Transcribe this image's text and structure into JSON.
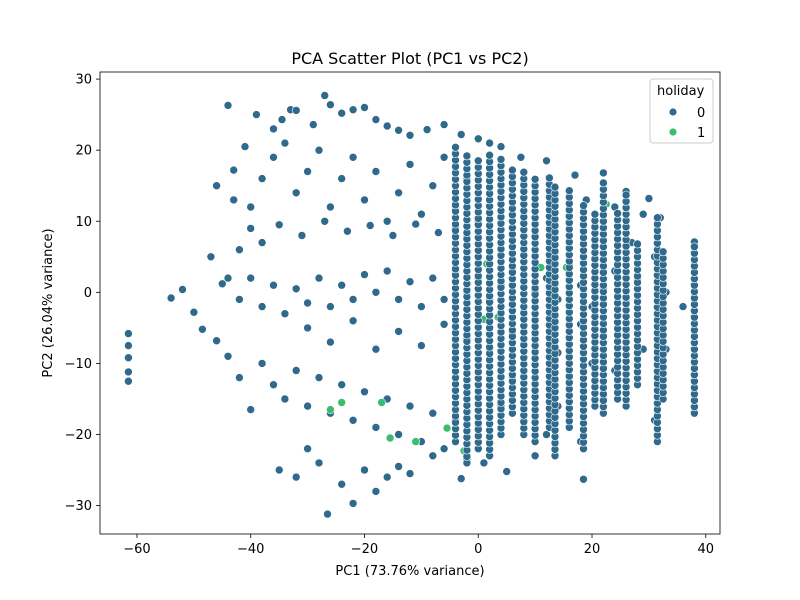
{
  "chart_data": {
    "type": "scatter",
    "title": "PCA Scatter Plot (PC1 vs PC2)",
    "xlabel": "PC1 (73.76% variance)",
    "ylabel": "PC2 (26.04% variance)",
    "xlim": [
      -66.5,
      42.5
    ],
    "ylim": [
      -34,
      31
    ],
    "xticks": [
      -60,
      -40,
      -20,
      0,
      20,
      40
    ],
    "xtick_labels": [
      "−60",
      "−40",
      "−20",
      "0",
      "20",
      "40"
    ],
    "yticks": [
      -30,
      -20,
      -10,
      0,
      10,
      20,
      30
    ],
    "ytick_labels": [
      "−30",
      "−20",
      "−10",
      "0",
      "10",
      "20",
      "30"
    ],
    "grid": false,
    "legend": {
      "title": "holiday",
      "placement": "top-right",
      "entries": [
        "0",
        "1"
      ]
    },
    "colors": {
      "0": "#2f6a8d",
      "1": "#3bbd6f"
    },
    "series": [
      {
        "name": "0",
        "color": "#2f6a8d",
        "points": [
          [
            -61.5,
            -5.8
          ],
          [
            -61.5,
            -7.5
          ],
          [
            -61.5,
            -9.2
          ],
          [
            -61.5,
            -11.2
          ],
          [
            -61.5,
            -12.5
          ],
          [
            -54,
            -0.8
          ],
          [
            -52,
            0.4
          ],
          [
            -50,
            -2.8
          ],
          [
            -48.5,
            -5.2
          ],
          [
            -47,
            5
          ],
          [
            -46,
            -6.8
          ],
          [
            -45,
            1.2
          ],
          [
            -44,
            26.3
          ],
          [
            -43,
            17.2
          ],
          [
            -41,
            20.5
          ],
          [
            -39,
            25
          ],
          [
            -36,
            23
          ],
          [
            -34.5,
            24.3
          ],
          [
            -33,
            25.7
          ],
          [
            -32,
            25.6
          ],
          [
            -29,
            23.6
          ],
          [
            -27,
            27.7
          ],
          [
            -26,
            26.4
          ],
          [
            -24,
            25.2
          ],
          [
            -22,
            25.7
          ],
          [
            -20,
            26
          ],
          [
            -18,
            24.3
          ],
          [
            -16,
            23.4
          ],
          [
            -14,
            22.8
          ],
          [
            -12,
            22.1
          ],
          [
            -9,
            22.9
          ],
          [
            -6,
            23.6
          ],
          [
            -3,
            22.2
          ],
          [
            0,
            21.6
          ],
          [
            2,
            21
          ],
          [
            4,
            20.5
          ],
          [
            7.5,
            19
          ],
          [
            12,
            18.5
          ],
          [
            17,
            16.5
          ],
          [
            22,
            16.8
          ],
          [
            26,
            14.2
          ],
          [
            30,
            13.2
          ],
          [
            32,
            10.5
          ],
          [
            38,
            7.1
          ],
          [
            38,
            -16.8
          ],
          [
            -46,
            15
          ],
          [
            -43,
            13
          ],
          [
            -40,
            12
          ],
          [
            -38,
            16
          ],
          [
            -36,
            19
          ],
          [
            -34,
            21
          ],
          [
            -32,
            14
          ],
          [
            -30,
            17
          ],
          [
            -28,
            20
          ],
          [
            -26,
            12
          ],
          [
            -24,
            16
          ],
          [
            -22,
            19
          ],
          [
            -20,
            13
          ],
          [
            -18,
            17
          ],
          [
            -16,
            10
          ],
          [
            -14,
            14
          ],
          [
            -12,
            18
          ],
          [
            -10,
            11
          ],
          [
            -8,
            15
          ],
          [
            -6,
            19
          ],
          [
            -4,
            12
          ],
          [
            -2,
            16
          ],
          [
            0,
            10
          ],
          [
            2,
            14
          ],
          [
            4,
            17
          ],
          [
            6,
            11
          ],
          [
            8,
            15
          ],
          [
            10,
            8
          ],
          [
            13,
            12
          ],
          [
            16,
            10
          ],
          [
            19,
            13
          ],
          [
            22,
            9
          ],
          [
            24,
            12
          ],
          [
            27,
            7
          ],
          [
            29,
            11
          ],
          [
            -42,
            6
          ],
          [
            -40,
            9
          ],
          [
            -38,
            7
          ],
          [
            -35,
            9.5
          ],
          [
            -31,
            8
          ],
          [
            -27,
            10
          ],
          [
            -23,
            8.6
          ],
          [
            -19,
            9.4
          ],
          [
            -15,
            8
          ],
          [
            -11,
            9.6
          ],
          [
            -7,
            8.4
          ],
          [
            -4,
            9.1
          ],
          [
            -44,
            2
          ],
          [
            -42,
            -1
          ],
          [
            -40,
            2
          ],
          [
            -38,
            -2
          ],
          [
            -36,
            1
          ],
          [
            -34,
            -3
          ],
          [
            -32,
            0.5
          ],
          [
            -30,
            -1.5
          ],
          [
            -28,
            2
          ],
          [
            -26,
            -2
          ],
          [
            -24,
            1
          ],
          [
            -22,
            -1
          ],
          [
            -20,
            2.5
          ],
          [
            -18,
            0
          ],
          [
            -16,
            3
          ],
          [
            -14,
            -1
          ],
          [
            -12,
            1.5
          ],
          [
            -10,
            -2
          ],
          [
            -8,
            2
          ],
          [
            -6,
            -1
          ],
          [
            -4,
            3
          ],
          [
            -2,
            0
          ],
          [
            0,
            2
          ],
          [
            2,
            -1
          ],
          [
            4,
            1
          ],
          [
            6,
            3
          ],
          [
            8,
            -1
          ],
          [
            10,
            0
          ],
          [
            12,
            2
          ],
          [
            14,
            -1
          ],
          [
            16,
            4
          ],
          [
            18,
            1
          ],
          [
            20,
            -2
          ],
          [
            22,
            0.5
          ],
          [
            24,
            3
          ],
          [
            26,
            -1
          ],
          [
            28,
            2
          ],
          [
            31,
            5
          ],
          [
            33,
            0
          ],
          [
            -44,
            -9
          ],
          [
            -42,
            -12
          ],
          [
            -40,
            -16.5
          ],
          [
            -38,
            -10
          ],
          [
            -36,
            -13
          ],
          [
            -34,
            -15
          ],
          [
            -32,
            -11
          ],
          [
            -30,
            -16
          ],
          [
            -28,
            -12
          ],
          [
            -26,
            -17
          ],
          [
            -24,
            -13
          ],
          [
            -22,
            -18
          ],
          [
            -20,
            -14
          ],
          [
            -18,
            -19
          ],
          [
            -16,
            -15
          ],
          [
            -14,
            -20
          ],
          [
            -12,
            -16
          ],
          [
            -10,
            -21
          ],
          [
            -8,
            -17
          ],
          [
            -6,
            -22
          ],
          [
            -4,
            -18
          ],
          [
            -2,
            -23.5
          ],
          [
            0,
            -19
          ],
          [
            2,
            -21
          ],
          [
            4,
            -16
          ],
          [
            6,
            -12
          ],
          [
            8,
            -18
          ],
          [
            10,
            -14
          ],
          [
            12,
            -20
          ],
          [
            14,
            -16
          ],
          [
            16,
            -12
          ],
          [
            18,
            -21
          ],
          [
            20,
            -10
          ],
          [
            22,
            -15
          ],
          [
            24,
            -11
          ],
          [
            26,
            -16
          ],
          [
            28,
            -13
          ],
          [
            31,
            -18
          ],
          [
            33,
            -8
          ],
          [
            -35,
            -25
          ],
          [
            -32,
            -26
          ],
          [
            -30,
            -22
          ],
          [
            -28,
            -24
          ],
          [
            -26.5,
            -31.2
          ],
          [
            -24,
            -27
          ],
          [
            -22,
            -29.7
          ],
          [
            -20,
            -25
          ],
          [
            -18,
            -28
          ],
          [
            -16,
            -26
          ],
          [
            -14,
            -24.5
          ],
          [
            -12,
            -25.5
          ],
          [
            -8,
            -23
          ],
          [
            -3,
            -26.2
          ],
          [
            1,
            -24
          ],
          [
            5,
            -25.2
          ],
          [
            10,
            -23
          ],
          [
            18.5,
            -26.3
          ],
          [
            -30,
            -5
          ],
          [
            -26,
            -7
          ],
          [
            -22,
            -4
          ],
          [
            -18,
            -8
          ],
          [
            -14,
            -5.5
          ],
          [
            -10,
            -7.5
          ],
          [
            -6,
            -4.5
          ],
          [
            -2,
            -6.5
          ],
          [
            2,
            -8
          ],
          [
            6,
            -9
          ],
          [
            10,
            -6
          ],
          [
            14,
            -8.5
          ],
          [
            18,
            -4.5
          ],
          [
            22,
            -7
          ],
          [
            26,
            -5.5
          ],
          [
            29,
            -8
          ],
          [
            32,
            -3
          ],
          [
            36,
            -2
          ]
        ]
      },
      {
        "name": "1",
        "color": "#3bbd6f",
        "points": [
          [
            13.5,
            14.7
          ],
          [
            22.5,
            12.4
          ],
          [
            -2,
            7.9
          ],
          [
            -2,
            4.9
          ],
          [
            1.5,
            4
          ],
          [
            10,
            2.3
          ],
          [
            11,
            3.5
          ],
          [
            15.5,
            3.5
          ],
          [
            1,
            -3.8
          ],
          [
            3.5,
            -3.5
          ],
          [
            6,
            -5.7
          ],
          [
            -5.5,
            -19.1
          ],
          [
            -2,
            -21.3
          ],
          [
            -2.5,
            -22.3
          ],
          [
            -11,
            -21
          ],
          [
            -15.5,
            -20.5
          ],
          [
            -17,
            -15.5
          ],
          [
            -24,
            -15.5
          ],
          [
            -26,
            -16.5
          ]
        ]
      },
      {
        "name": "0",
        "color": "#2f6a8d",
        "layer": "vertical-stripes",
        "stripes": [
          {
            "x": -4,
            "ymin": -21,
            "ymax": 21
          },
          {
            "x": -2,
            "ymin": -24,
            "ymax": 20
          },
          {
            "x": 0,
            "ymin": -22,
            "ymax": 19
          },
          {
            "x": 2,
            "ymin": -23,
            "ymax": 20
          },
          {
            "x": 4,
            "ymin": -20,
            "ymax": 19.5
          },
          {
            "x": 6,
            "ymin": -17,
            "ymax": 18
          },
          {
            "x": 8,
            "ymin": -20,
            "ymax": 17.5
          },
          {
            "x": 10,
            "ymin": -21,
            "ymax": 16
          },
          {
            "x": 12.5,
            "ymin": -19,
            "ymax": 17
          },
          {
            "x": 13.5,
            "ymin": -23,
            "ymax": 15
          },
          {
            "x": 16,
            "ymin": -19,
            "ymax": 14.5
          },
          {
            "x": 18.5,
            "ymin": -22,
            "ymax": 13
          },
          {
            "x": 20.5,
            "ymin": -16,
            "ymax": 11.5
          },
          {
            "x": 22,
            "ymin": -17,
            "ymax": 16
          },
          {
            "x": 24.5,
            "ymin": -15,
            "ymax": 12
          },
          {
            "x": 26,
            "ymin": -16,
            "ymax": 14
          },
          {
            "x": 28,
            "ymin": -13,
            "ymax": 7
          },
          {
            "x": 31.5,
            "ymin": -21,
            "ymax": 10.5
          },
          {
            "x": 32.5,
            "ymin": -15,
            "ymax": 6
          },
          {
            "x": 38,
            "ymin": -17,
            "ymax": 7
          }
        ]
      }
    ]
  }
}
